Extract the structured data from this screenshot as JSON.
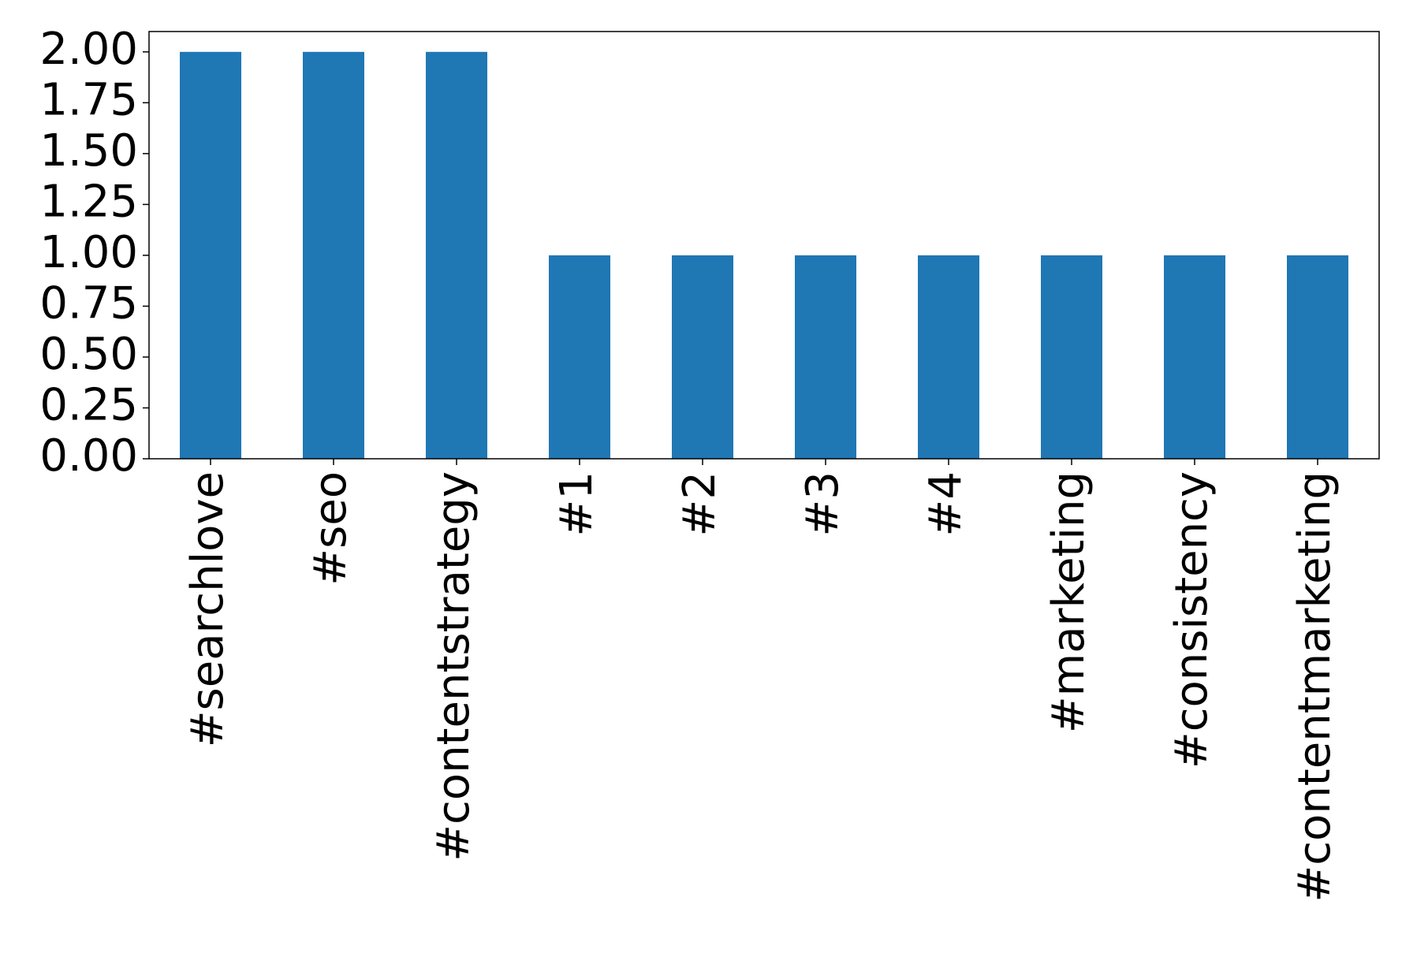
{
  "chart_data": {
    "type": "bar",
    "categories": [
      "#searchlove",
      "#seo",
      "#contentstrategy",
      "#1",
      "#2",
      "#3",
      "#4",
      "#marketing",
      "#consistency",
      "#contentmarketing"
    ],
    "values": [
      2,
      2,
      2,
      1,
      1,
      1,
      1,
      1,
      1,
      1
    ],
    "color": "#1f77b4",
    "ylim": [
      0,
      2.1
    ],
    "yticks": [
      {
        "value": 0,
        "label": "0.00"
      },
      {
        "value": 0.25,
        "label": "0.25"
      },
      {
        "value": 0.5,
        "label": "0.50"
      },
      {
        "value": 0.75,
        "label": "0.75"
      },
      {
        "value": 1,
        "label": "1.00"
      },
      {
        "value": 1.25,
        "label": "1.25"
      },
      {
        "value": 1.5,
        "label": "1.50"
      },
      {
        "value": 1.75,
        "label": "1.75"
      },
      {
        "value": 2,
        "label": "2.00"
      }
    ],
    "grid": false
  }
}
